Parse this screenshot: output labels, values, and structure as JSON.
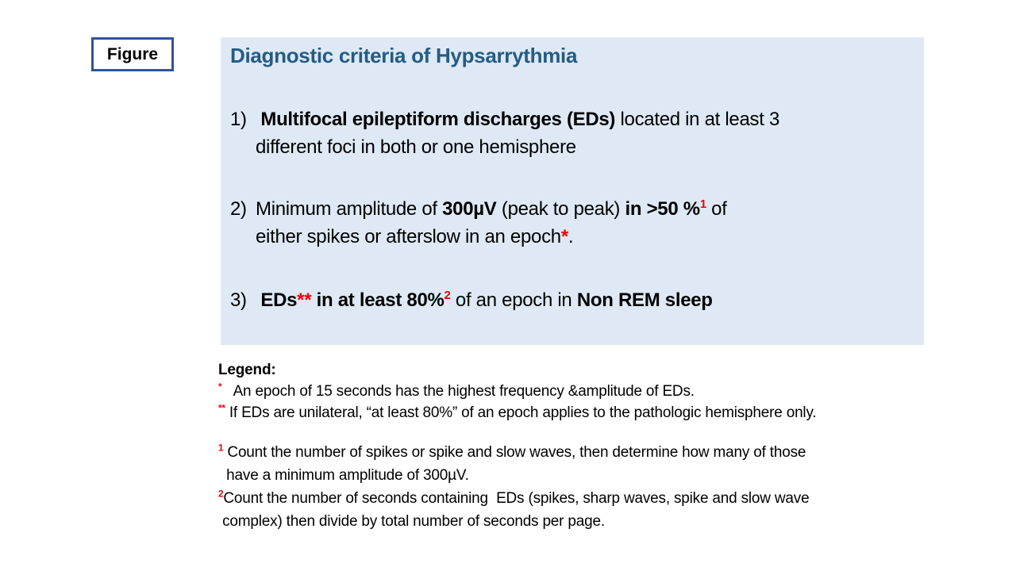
{
  "figure_label": "Figure",
  "colors": {
    "panel_bg": "#DEE9F5",
    "title_blue": "#265B83",
    "figure_border": "#2F5597",
    "accent_red": "#F00000"
  },
  "panel": {
    "title": "Diagnostic criteria of Hypsarrythmia",
    "items": [
      {
        "number": "1)",
        "segments": [
          {
            "t": " Multifocal epileptiform discharges (EDs)",
            "b": true
          },
          {
            "t": " located in at least 3"
          },
          {
            "br": true
          },
          {
            "t": "different foci in both or one hemisphere"
          }
        ]
      },
      {
        "number": "2)",
        "segments": [
          {
            "t": "Minimum amplitude of "
          },
          {
            "t": "300µV",
            "b": true
          },
          {
            "t": " (peak to peak) "
          },
          {
            "t": "in >50 %",
            "b": true
          },
          {
            "t": "1",
            "b": true,
            "red": true,
            "sup": true
          },
          {
            "t": " of"
          },
          {
            "br": true
          },
          {
            "t": "either spikes or afterslow in an epoch"
          },
          {
            "t": "*",
            "b": true,
            "red": true
          },
          {
            "t": "."
          }
        ]
      },
      {
        "number": "3)",
        "segments": [
          {
            "t": " EDs",
            "b": true
          },
          {
            "t": "**",
            "b": true,
            "red": true
          },
          {
            "t": " in at least 80%",
            "b": true
          },
          {
            "t": "2",
            "b": true,
            "red": true,
            "sup": true
          },
          {
            "t": " of an epoch in "
          },
          {
            "t": "Non REM sleep",
            "b": true
          }
        ]
      }
    ]
  },
  "legend": {
    "heading": "Legend:",
    "entries": [
      {
        "segments": [
          {
            "t": "*",
            "b": true,
            "red": true,
            "sup": true
          },
          {
            "t": "   An epoch of 15 seconds has the highest frequency &amplitude of EDs."
          }
        ]
      },
      {
        "segments": [
          {
            "t": "**",
            "b": true,
            "red": true,
            "sup": true
          },
          {
            "t": " If EDs are unilateral, “at least 80%” of an epoch applies to the pathologic hemisphere only."
          }
        ]
      }
    ]
  },
  "footnotes": [
    {
      "segments": [
        {
          "t": "1",
          "b": true,
          "red": true,
          "sup": true
        },
        {
          "t": " Count the number of spikes or spike and slow waves, then determine how many of those"
        },
        {
          "br": true
        },
        {
          "t": "  have a minimum amplitude of 300µV."
        }
      ]
    },
    {
      "segments": [
        {
          "t": "2",
          "b": true,
          "red": true,
          "sup": true
        },
        {
          "t": "Count the number of seconds containing  EDs (spikes, sharp waves, spike and slow wave"
        },
        {
          "br": true
        },
        {
          "t": " complex) then divide by total number of seconds per page."
        }
      ]
    }
  ]
}
